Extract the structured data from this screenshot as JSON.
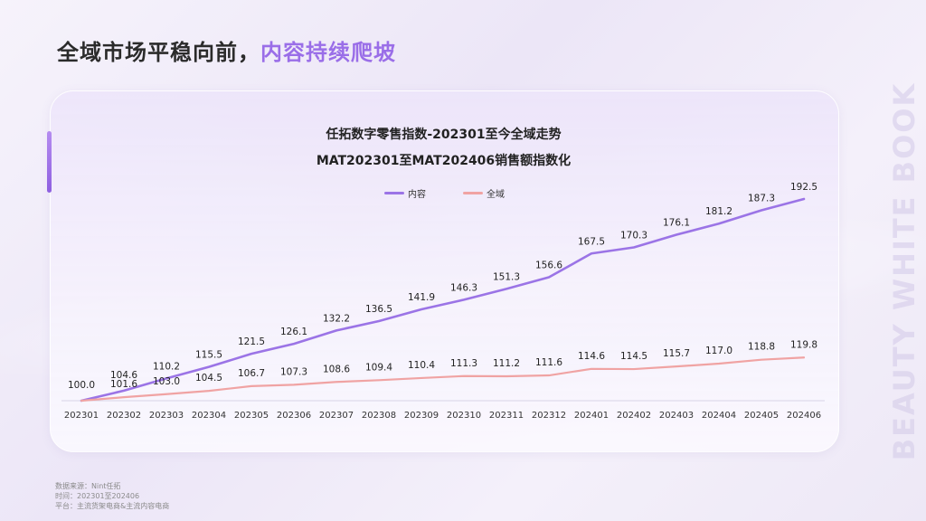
{
  "page": {
    "title_main": "全域市场平稳向前，",
    "title_accent": "内容持续爬坡",
    "watermark": "BEAUTY WHITE BOOK",
    "footnotes": [
      "数据来源：Nint任拓",
      "时间：202301至202406",
      "平台：主流货架电商&主流内容电商"
    ],
    "accent_color": "#9a6ee8"
  },
  "chart_data": {
    "type": "line",
    "title": "任拓数字零售指数-202301至今全域走势",
    "subtitle": "MAT202301至MAT202406销售额指数化",
    "categories": [
      "202301",
      "202302",
      "202303",
      "202304",
      "202305",
      "202306",
      "202307",
      "202308",
      "202309",
      "202310",
      "202311",
      "202312",
      "202401",
      "202402",
      "202403",
      "202404",
      "202405",
      "202406"
    ],
    "series": [
      {
        "name": "内容",
        "color": "#9b74e6",
        "values": [
          100.0,
          104.6,
          110.2,
          115.5,
          121.5,
          126.1,
          132.2,
          136.5,
          141.9,
          146.3,
          151.3,
          156.6,
          167.5,
          170.3,
          176.1,
          181.2,
          187.3,
          192.5
        ],
        "labels": [
          "100.0",
          "104.6",
          "110.2",
          "115.5",
          "121.5",
          "126.1",
          "132.2",
          "136.5",
          "141.9",
          "146.3",
          "151.3",
          "156.6",
          "167.5",
          "170.3",
          "176.1",
          "181.2",
          "187.3",
          "192.5"
        ]
      },
      {
        "name": "全域",
        "color": "#f0a3a3",
        "values": [
          100.0,
          101.6,
          103.0,
          104.5,
          106.7,
          107.3,
          108.6,
          109.4,
          110.4,
          111.3,
          111.2,
          111.6,
          114.6,
          114.5,
          115.7,
          117.0,
          118.8,
          119.8
        ],
        "labels": [
          "100.0",
          "101.6",
          "103.0",
          "104.5",
          "106.7",
          "107.3",
          "108.6",
          "109.4",
          "110.4",
          "111.3",
          "111.2",
          "111.6",
          "114.6",
          "114.5",
          "115.7",
          "117.0",
          "118.8",
          "119.8"
        ]
      }
    ],
    "grid": false,
    "legend": "top-center"
  }
}
